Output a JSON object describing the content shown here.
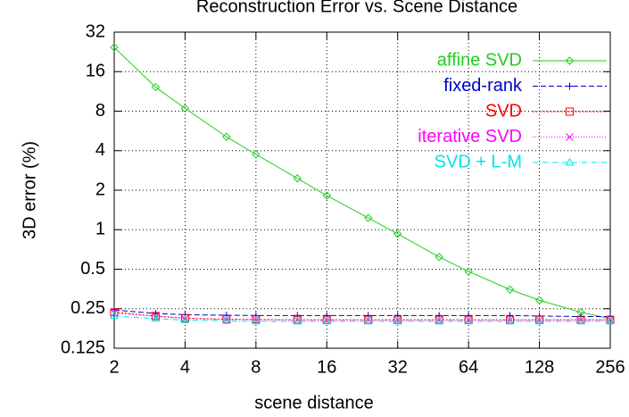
{
  "chart_data": {
    "type": "line",
    "title": "Reconstruction Error vs. Scene Distance",
    "xlabel": "scene distance",
    "ylabel": "3D error (%)",
    "x": [
      2,
      3,
      4,
      6,
      8,
      12,
      16,
      24,
      32,
      48,
      64,
      96,
      128,
      192,
      256
    ],
    "series": [
      {
        "name": "affine SVD",
        "color": "#22cc22",
        "marker": "diamond",
        "dash": "",
        "values": [
          24.5,
          12.2,
          8.4,
          5.1,
          3.75,
          2.46,
          1.82,
          1.23,
          0.93,
          0.62,
          0.48,
          0.35,
          0.29,
          0.235,
          0.21
        ]
      },
      {
        "name": "fixed-rank",
        "color": "#0000cc",
        "marker": "plus",
        "dash": "6 3",
        "values": [
          0.245,
          0.23,
          0.225,
          0.223,
          0.222,
          0.222,
          0.222,
          0.222,
          0.222,
          0.222,
          0.222,
          0.222,
          0.22,
          0.218,
          0.218
        ]
      },
      {
        "name": "SVD",
        "color": "#ff0000",
        "marker": "square",
        "dash": "2 2",
        "values": [
          0.235,
          0.22,
          0.212,
          0.208,
          0.207,
          0.206,
          0.206,
          0.206,
          0.206,
          0.206,
          0.206,
          0.206,
          0.206,
          0.206,
          0.206
        ]
      },
      {
        "name": "iterative SVD",
        "color": "#ff00ff",
        "marker": "cross",
        "dash": "1 2",
        "values": [
          0.232,
          0.218,
          0.21,
          0.207,
          0.206,
          0.205,
          0.205,
          0.205,
          0.205,
          0.205,
          0.205,
          0.205,
          0.205,
          0.205,
          0.205
        ]
      },
      {
        "name": "SVD + L-M",
        "color": "#00e5e5",
        "marker": "triangle",
        "dash": "6 2 1 2",
        "values": [
          0.22,
          0.21,
          0.205,
          0.202,
          0.2,
          0.2,
          0.2,
          0.2,
          0.2,
          0.2,
          0.2,
          0.2,
          0.2,
          0.2,
          0.2
        ]
      }
    ],
    "xlim": [
      2,
      256
    ],
    "xticks": [
      2,
      4,
      8,
      16,
      32,
      64,
      128,
      256
    ],
    "ylim": [
      0.125,
      32
    ],
    "yticks": [
      0.125,
      0.25,
      0.5,
      1,
      2,
      4,
      8,
      16,
      32
    ],
    "xscale": "log",
    "yscale": "log",
    "grid": true,
    "legend": "top right"
  }
}
